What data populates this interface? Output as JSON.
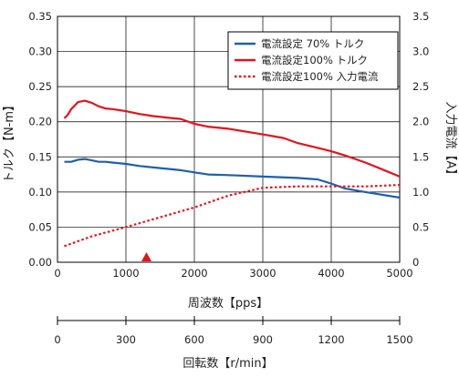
{
  "chart_data": [
    {
      "type": "line",
      "xlabel": "周波数【pps】",
      "ylabel_left": "トルク【N-m】",
      "ylabel_right": "入力電流【A】",
      "xlim": [
        0,
        5000
      ],
      "ylim_left": [
        0,
        0.35
      ],
      "ylim_right": [
        0,
        3.5
      ],
      "x_ticks": [
        "0",
        "1000",
        "2000",
        "3000",
        "4000",
        "5000"
      ],
      "y_left_ticks": [
        "0.00",
        "0.05",
        "0.10",
        "0.15",
        "0.20",
        "0.25",
        "0.30",
        "0.35"
      ],
      "y_right_ticks": [
        "0",
        "0.5",
        "1.0",
        "1.5",
        "2.0",
        "2.5",
        "3.0",
        "3.5"
      ],
      "grid": true,
      "legend_position": "top-right",
      "marker": {
        "x": 1300,
        "color": "#e1141e",
        "shape": "triangle-up"
      },
      "series": [
        {
          "name": "電流設定 70% トルク",
          "axis": "left",
          "color": "#1f5fa8",
          "style": "solid",
          "x": [
            100,
            200,
            300,
            400,
            500,
            600,
            700,
            800,
            1000,
            1200,
            1400,
            1600,
            1800,
            2000,
            2200,
            2500,
            3000,
            3500,
            3800,
            4000,
            4200,
            4500,
            5000
          ],
          "y": [
            0.143,
            0.143,
            0.146,
            0.147,
            0.145,
            0.143,
            0.143,
            0.142,
            0.14,
            0.137,
            0.135,
            0.133,
            0.131,
            0.128,
            0.125,
            0.124,
            0.122,
            0.12,
            0.118,
            0.112,
            0.105,
            0.1,
            0.092
          ]
        },
        {
          "name": "電流設定100% トルク",
          "axis": "left",
          "color": "#e1141e",
          "style": "solid",
          "x": [
            100,
            150,
            200,
            300,
            400,
            500,
            600,
            700,
            800,
            1000,
            1200,
            1400,
            1600,
            1800,
            2000,
            2200,
            2500,
            3000,
            3300,
            3500,
            3800,
            4000,
            4200,
            4500,
            4800,
            5000
          ],
          "y": [
            0.205,
            0.21,
            0.218,
            0.228,
            0.23,
            0.227,
            0.222,
            0.219,
            0.218,
            0.215,
            0.211,
            0.208,
            0.206,
            0.204,
            0.197,
            0.193,
            0.19,
            0.182,
            0.177,
            0.17,
            0.163,
            0.158,
            0.152,
            0.142,
            0.13,
            0.122
          ]
        },
        {
          "name": "電流設定100% 入力電流",
          "axis": "right",
          "color": "#e1141e",
          "style": "dotted",
          "x": [
            100,
            500,
            1000,
            1500,
            2000,
            2500,
            3000,
            3500,
            4000,
            4500,
            5000
          ],
          "y": [
            0.23,
            0.37,
            0.5,
            0.64,
            0.78,
            0.95,
            1.06,
            1.08,
            1.08,
            1.08,
            1.1
          ]
        }
      ]
    },
    {
      "type": "line",
      "xlabel": "回転数【r/min】",
      "xlim": [
        0,
        1500
      ],
      "x_ticks": [
        "0",
        "300",
        "600",
        "900",
        "1200",
        "1500"
      ]
    }
  ]
}
